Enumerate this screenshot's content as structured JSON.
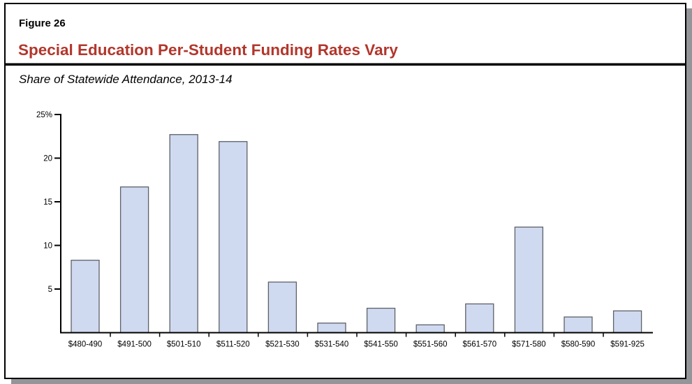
{
  "figure": {
    "label": "Figure 26",
    "title": "Special Education Per-Student Funding Rates Vary",
    "subtitle": "Share of Statewide Attendance, 2013-14"
  },
  "colors": {
    "title": "#b2362b",
    "bar_fill": "#cfdaf0",
    "bar_stroke": "#5c6068",
    "shadow": "#939598"
  },
  "chart_data": {
    "type": "bar",
    "title": "Special Education Per-Student Funding Rates Vary",
    "subtitle": "Share of Statewide Attendance, 2013-14",
    "xlabel": "",
    "ylabel": "",
    "categories": [
      "$480-490",
      "$491-500",
      "$501-510",
      "$511-520",
      "$521-530",
      "$531-540",
      "$541-550",
      "$551-560",
      "$561-570",
      "$571-580",
      "$580-590",
      "$591-925"
    ],
    "values": [
      8.3,
      16.7,
      22.7,
      21.9,
      5.8,
      1.1,
      2.8,
      0.9,
      3.3,
      12.1,
      1.8,
      2.5
    ],
    "unit": "%",
    "ylim": [
      0,
      25
    ],
    "yticks": [
      5,
      10,
      15,
      20,
      25
    ],
    "ytick_labels": [
      "5",
      "10",
      "15",
      "20",
      "25%"
    ],
    "grid": false,
    "legend": null
  }
}
